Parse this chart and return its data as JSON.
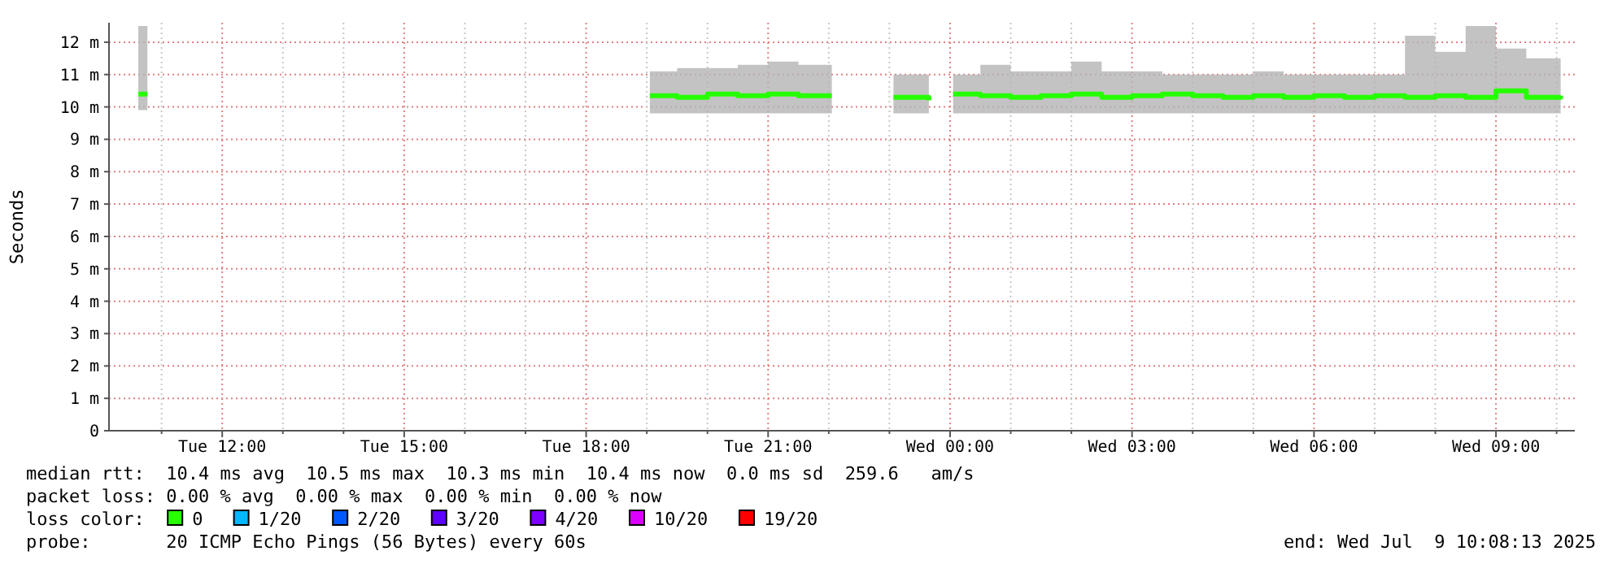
{
  "chart_data": {
    "type": "line",
    "ylabel": "Seconds",
    "legend_title": "loss color:",
    "legend": "bottom",
    "grid": true,
    "marker": "none",
    "line_style": "solid",
    "xlim": [
      "2025-07-08T10:08",
      "2025-07-09T10:18"
    ],
    "xticks": [
      {
        "value": "2025-07-08T11:00",
        "label": null
      },
      {
        "value": "2025-07-08T12:00",
        "label": "Tue 12:00"
      },
      {
        "value": "2025-07-08T13:00",
        "label": null
      },
      {
        "value": "2025-07-08T14:00",
        "label": null
      },
      {
        "value": "2025-07-08T15:00",
        "label": "Tue 15:00"
      },
      {
        "value": "2025-07-08T16:00",
        "label": null
      },
      {
        "value": "2025-07-08T17:00",
        "label": null
      },
      {
        "value": "2025-07-08T18:00",
        "label": "Tue 18:00"
      },
      {
        "value": "2025-07-08T19:00",
        "label": null
      },
      {
        "value": "2025-07-08T20:00",
        "label": null
      },
      {
        "value": "2025-07-08T21:00",
        "label": "Tue 21:00"
      },
      {
        "value": "2025-07-08T22:00",
        "label": null
      },
      {
        "value": "2025-07-08T23:00",
        "label": null
      },
      {
        "value": "2025-07-09T00:00",
        "label": "Wed 00:00"
      },
      {
        "value": "2025-07-09T01:00",
        "label": null
      },
      {
        "value": "2025-07-09T02:00",
        "label": null
      },
      {
        "value": "2025-07-09T03:00",
        "label": "Wed 03:00"
      },
      {
        "value": "2025-07-09T04:00",
        "label": null
      },
      {
        "value": "2025-07-09T05:00",
        "label": null
      },
      {
        "value": "2025-07-09T06:00",
        "label": "Wed 06:00"
      },
      {
        "value": "2025-07-09T07:00",
        "label": null
      },
      {
        "value": "2025-07-09T08:00",
        "label": null
      },
      {
        "value": "2025-07-09T09:00",
        "label": "Wed 09:00"
      },
      {
        "value": "2025-07-09T10:00",
        "label": null
      }
    ],
    "ylim": [
      0,
      12.6
    ],
    "yticks": [
      0,
      {
        "value": 1,
        "label": "1 m"
      },
      {
        "value": 2,
        "label": "2 m"
      },
      {
        "value": 3,
        "label": "3 m"
      },
      {
        "value": 4,
        "label": "4 m"
      },
      {
        "value": 5,
        "label": "5 m"
      },
      {
        "value": 6,
        "label": "6 m"
      },
      {
        "value": 7,
        "label": "7 m"
      },
      {
        "value": 8,
        "label": "8 m"
      },
      {
        "value": 9,
        "label": "9 m"
      },
      {
        "value": 10,
        "label": "10 m"
      },
      {
        "value": 11,
        "label": "11 m"
      },
      {
        "value": 12,
        "label": "12 m"
      }
    ],
    "series": [
      {
        "name": "0",
        "color": "#26ff00",
        "x": [
          "2025-07-08T10:37",
          "2025-07-08T10:46",
          "2025-07-08T15:00",
          "2025-07-08T19:03",
          "2025-07-08T19:30",
          "2025-07-08T20:00",
          "2025-07-08T20:30",
          "2025-07-08T21:00",
          "2025-07-08T21:30",
          "2025-07-08T22:03",
          "2025-07-08T22:30",
          "2025-07-08T23:04",
          "2025-07-08T23:39",
          "2025-07-08T23:50",
          "2025-07-09T00:03",
          "2025-07-09T00:30",
          "2025-07-09T01:00",
          "2025-07-09T01:30",
          "2025-07-09T02:00",
          "2025-07-09T02:30",
          "2025-07-09T03:00",
          "2025-07-09T03:30",
          "2025-07-09T04:00",
          "2025-07-09T04:30",
          "2025-07-09T05:00",
          "2025-07-09T05:30",
          "2025-07-09T06:00",
          "2025-07-09T06:30",
          "2025-07-09T07:00",
          "2025-07-09T07:30",
          "2025-07-09T08:00",
          "2025-07-09T08:30",
          "2025-07-09T09:00",
          "2025-07-09T09:30",
          "2025-07-09T10:04"
        ],
        "values": [
          10.4,
          10.4,
          null,
          10.35,
          10.3,
          10.4,
          10.35,
          10.4,
          10.35,
          10.35,
          null,
          10.3,
          10.2,
          null,
          10.4,
          10.35,
          10.3,
          10.35,
          10.4,
          10.3,
          10.35,
          10.4,
          10.35,
          10.3,
          10.35,
          10.3,
          10.35,
          10.3,
          10.35,
          10.3,
          10.35,
          10.3,
          10.5,
          10.3,
          10.35
        ],
        "lower": [
          9.9,
          9.9,
          null,
          9.8,
          9.8,
          9.8,
          9.8,
          9.8,
          9.8,
          9.8,
          null,
          9.8,
          9.8,
          null,
          9.8,
          9.8,
          9.8,
          9.8,
          9.8,
          9.8,
          9.8,
          9.8,
          9.8,
          9.8,
          9.8,
          9.8,
          9.8,
          9.8,
          9.8,
          9.8,
          9.8,
          9.8,
          9.8,
          9.8,
          9.8
        ],
        "upper": [
          12.5,
          12.5,
          null,
          11.1,
          11.2,
          11.2,
          11.3,
          11.4,
          11.3,
          11.1,
          null,
          11.0,
          11.0,
          null,
          11.0,
          11.3,
          11.1,
          11.1,
          11.4,
          11.1,
          11.1,
          11.0,
          11.0,
          11.0,
          11.1,
          11.0,
          11.0,
          11.0,
          11.0,
          12.2,
          11.7,
          12.5,
          11.8,
          11.5,
          12.1
        ]
      },
      {
        "name": "1/20",
        "color": "#00b8ff"
      },
      {
        "name": "2/20",
        "color": "#0059ff"
      },
      {
        "name": "3/20",
        "color": "#5e00ff"
      },
      {
        "name": "4/20",
        "color": "#7e00ff"
      },
      {
        "name": "10/20",
        "color": "#dd00ff"
      },
      {
        "name": "19/20",
        "color": "#ff0000"
      }
    ],
    "annotations": [
      "median rtt:  10.4 ms avg  10.5 ms max  10.3 ms min  10.4 ms now  0.0 ms sd  259.6   am/s",
      "packet loss: 0.00 % avg  0.00 % max  0.00 % min  0.00 % now",
      "probe:       20 ICMP Echo Pings (56 Bytes) every 60s",
      "end: Wed Jul  9 10:08:13 2025"
    ]
  }
}
